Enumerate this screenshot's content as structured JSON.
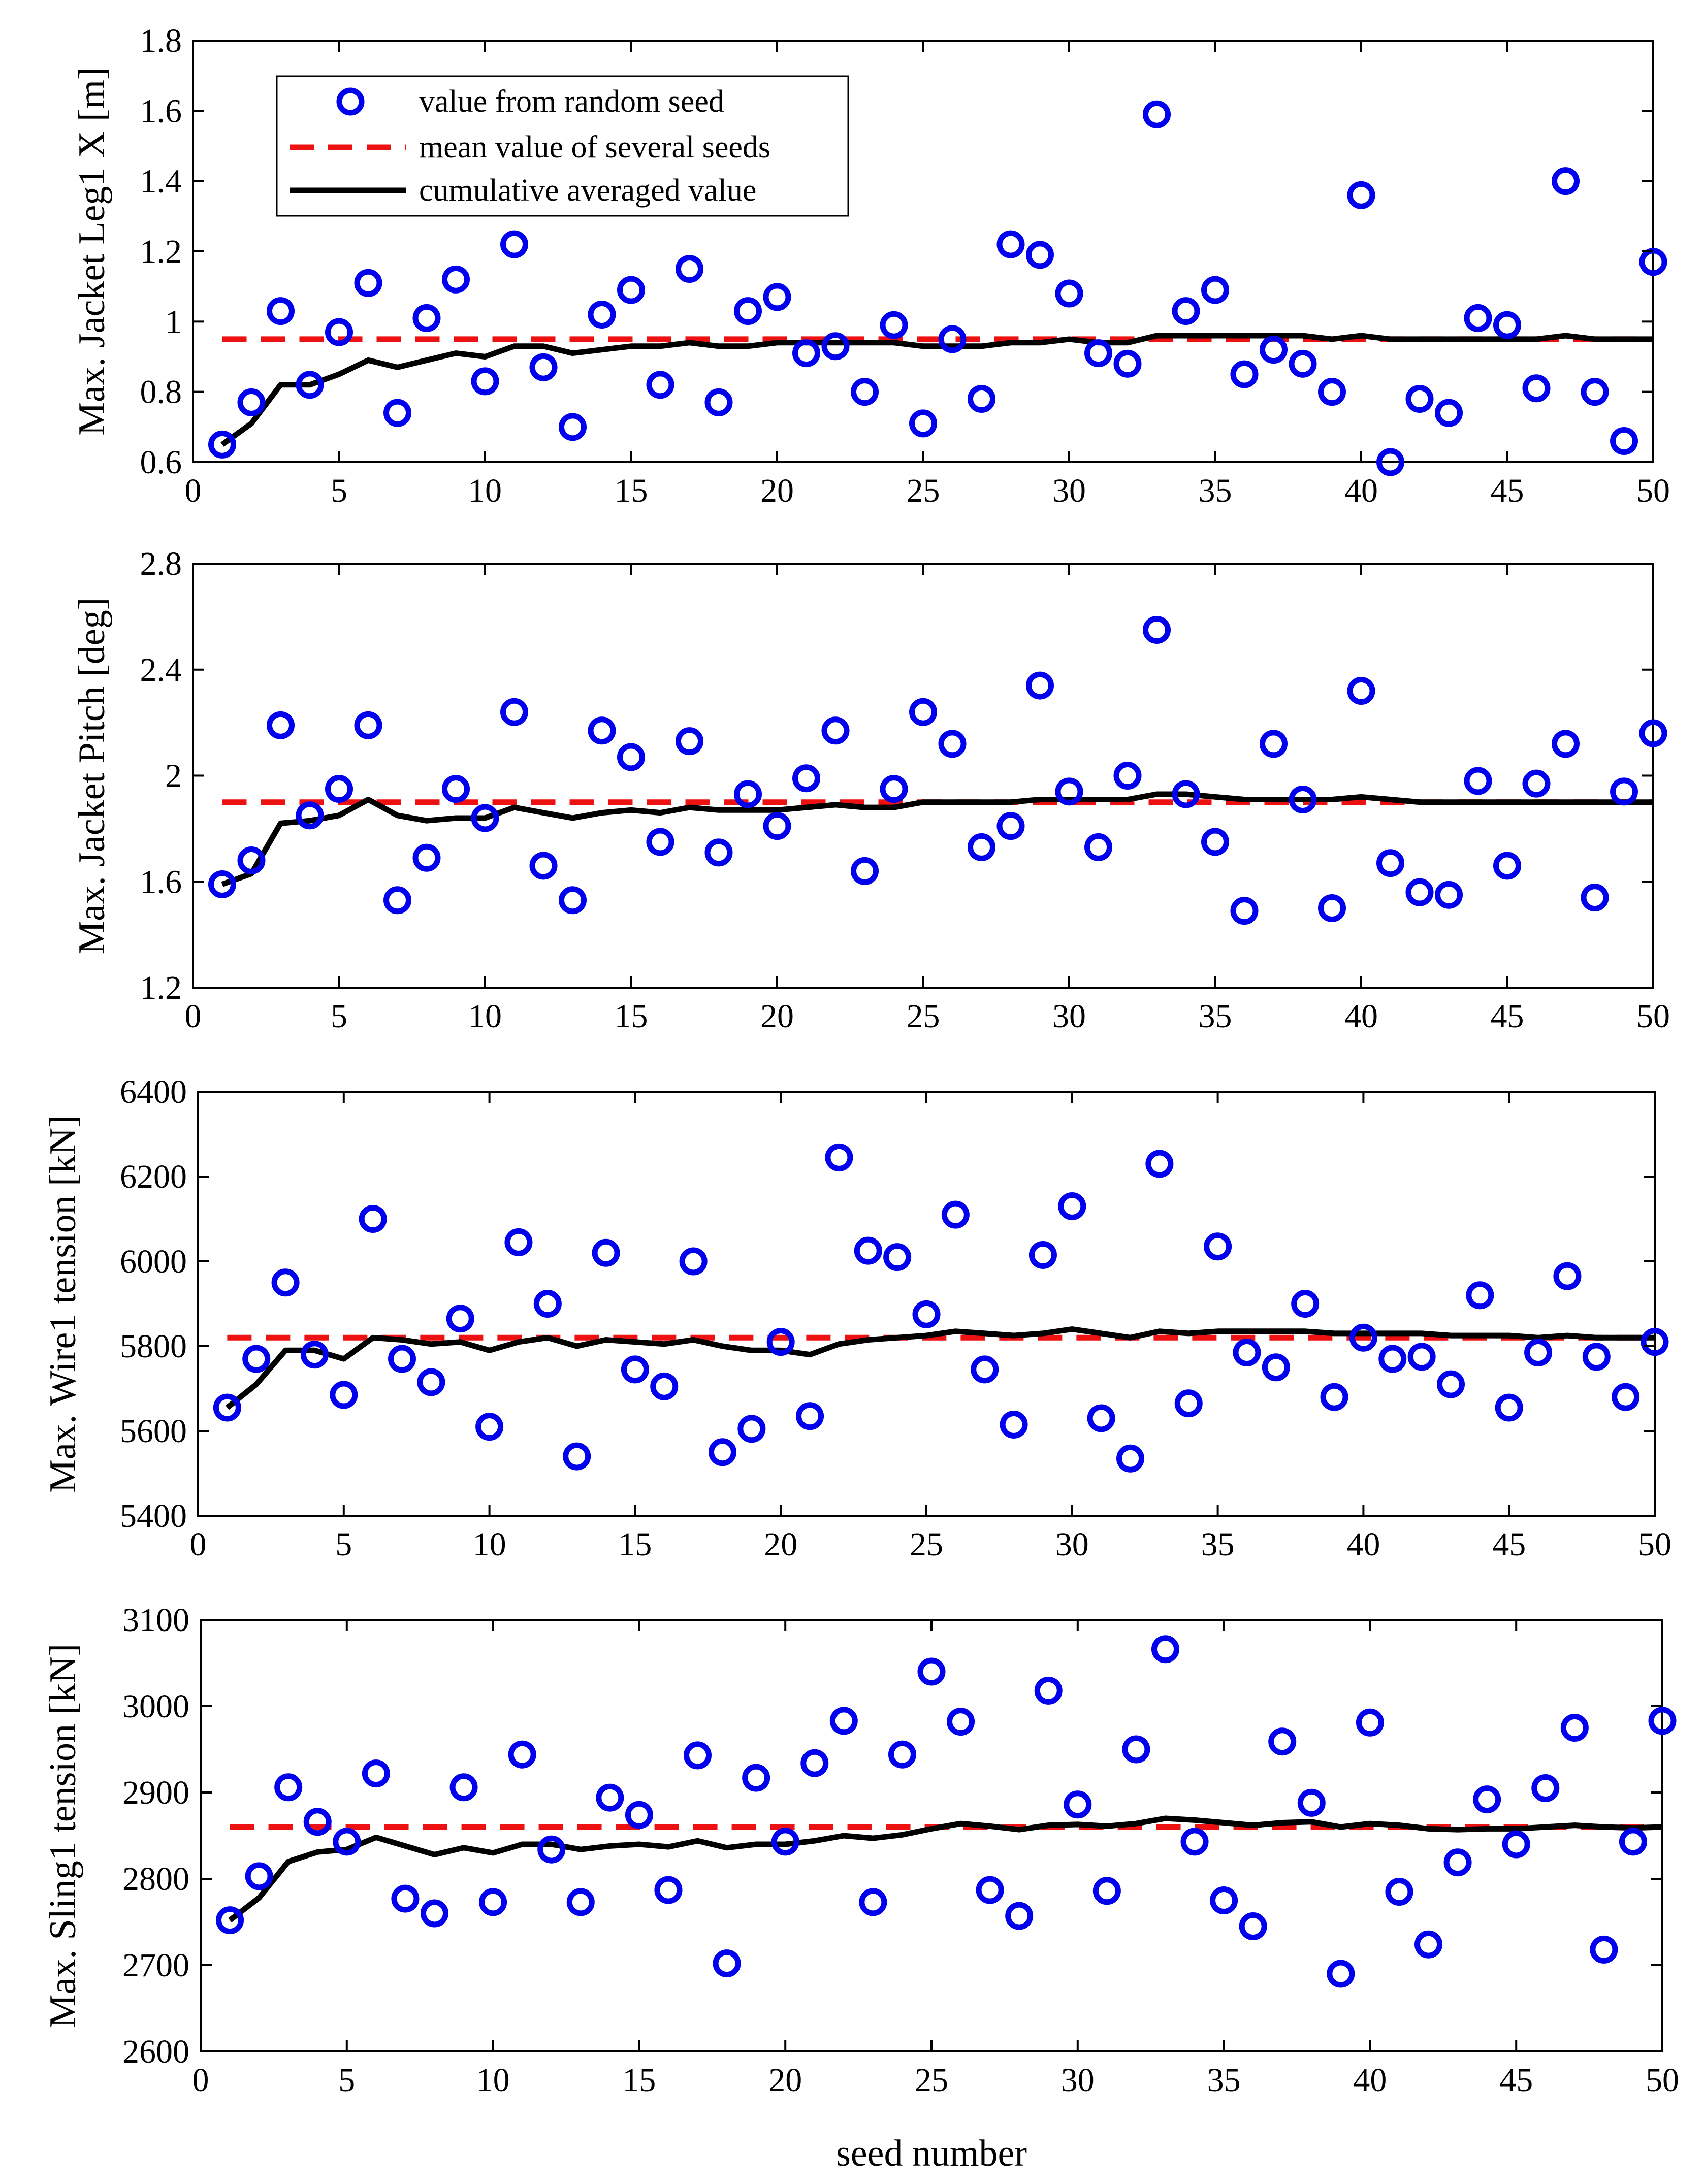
{
  "chart_data": [
    {
      "type": "scatter",
      "id": "leg1x",
      "ylabel": "Max. Jacket Leg1 X [m]",
      "xlabel": "",
      "xlim": [
        0,
        50
      ],
      "ylim": [
        0.6,
        1.8
      ],
      "xticks": [
        0,
        5,
        10,
        15,
        20,
        25,
        30,
        35,
        40,
        45,
        50
      ],
      "yticks": [
        0.6,
        0.8,
        1,
        1.2,
        1.4,
        1.6,
        1.8
      ],
      "ytick_labels": [
        "0.6",
        "0.8",
        "1",
        "1.2",
        "1.4",
        "1.6",
        "1.8"
      ],
      "mean": 0.95,
      "series": [
        {
          "name": "value from random seed",
          "x": [
            1,
            2,
            3,
            4,
            5,
            6,
            7,
            8,
            9,
            10,
            11,
            12,
            13,
            14,
            15,
            16,
            17,
            18,
            19,
            20,
            21,
            22,
            23,
            24,
            25,
            26,
            27,
            28,
            29,
            30,
            31,
            32,
            33,
            34,
            35,
            36,
            37,
            38,
            39,
            40,
            41,
            42,
            43,
            44,
            45,
            46,
            47,
            48,
            49,
            50
          ],
          "values": [
            0.65,
            0.77,
            1.03,
            0.82,
            0.97,
            1.11,
            0.74,
            1.01,
            1.12,
            0.83,
            1.22,
            0.87,
            0.7,
            1.02,
            1.09,
            0.82,
            1.15,
            0.77,
            1.03,
            1.07,
            0.91,
            0.93,
            0.8,
            0.99,
            0.71,
            0.95,
            0.78,
            1.22,
            1.19,
            1.08,
            0.91,
            0.88,
            1.59,
            1.03,
            1.09,
            0.85,
            0.92,
            0.88,
            0.8,
            1.36,
            0.6,
            0.78,
            0.74,
            1.01,
            0.99,
            0.81,
            1.4,
            0.8,
            0.66,
            1.17
          ]
        },
        {
          "name": "cumulative averaged value",
          "values": [
            0.65,
            0.71,
            0.82,
            0.82,
            0.85,
            0.89,
            0.87,
            0.89,
            0.91,
            0.9,
            0.93,
            0.93,
            0.91,
            0.92,
            0.93,
            0.93,
            0.94,
            0.93,
            0.93,
            0.94,
            0.94,
            0.94,
            0.94,
            0.94,
            0.93,
            0.93,
            0.93,
            0.94,
            0.94,
            0.95,
            0.94,
            0.94,
            0.96,
            0.96,
            0.96,
            0.96,
            0.96,
            0.96,
            0.95,
            0.96,
            0.95,
            0.95,
            0.95,
            0.95,
            0.95,
            0.95,
            0.96,
            0.95,
            0.95,
            0.95
          ]
        }
      ]
    },
    {
      "type": "scatter",
      "id": "pitch",
      "ylabel": "Max. Jacket Pitch [deg]",
      "xlabel": "",
      "xlim": [
        0,
        50
      ],
      "ylim": [
        1.2,
        2.8
      ],
      "xticks": [
        0,
        5,
        10,
        15,
        20,
        25,
        30,
        35,
        40,
        45,
        50
      ],
      "yticks": [
        1.2,
        1.6,
        2,
        2.4,
        2.8
      ],
      "ytick_labels": [
        "1.2",
        "1.6",
        "2",
        "2.4",
        "2.8"
      ],
      "mean": 1.9,
      "series": [
        {
          "name": "value from random seed",
          "x": [
            1,
            2,
            3,
            4,
            5,
            6,
            7,
            8,
            9,
            10,
            11,
            12,
            13,
            14,
            15,
            16,
            17,
            18,
            19,
            20,
            21,
            22,
            23,
            24,
            25,
            26,
            27,
            28,
            29,
            30,
            31,
            32,
            33,
            34,
            35,
            36,
            37,
            38,
            39,
            40,
            41,
            42,
            43,
            44,
            45,
            46,
            47,
            48,
            49,
            50
          ],
          "values": [
            1.59,
            1.68,
            2.19,
            1.85,
            1.95,
            2.19,
            1.53,
            1.69,
            1.95,
            1.84,
            2.24,
            1.66,
            1.53,
            2.17,
            2.07,
            1.75,
            2.13,
            1.71,
            1.93,
            1.81,
            1.99,
            2.17,
            1.64,
            1.95,
            2.24,
            2.12,
            1.73,
            1.81,
            2.34,
            1.94,
            1.73,
            2.0,
            2.55,
            1.93,
            1.75,
            1.49,
            2.12,
            1.91,
            1.5,
            2.32,
            1.67,
            1.56,
            1.55,
            1.98,
            1.66,
            1.97,
            2.12,
            1.54,
            1.94,
            2.16
          ]
        },
        {
          "name": "cumulative averaged value",
          "values": [
            1.59,
            1.63,
            1.82,
            1.83,
            1.85,
            1.91,
            1.85,
            1.83,
            1.84,
            1.84,
            1.88,
            1.86,
            1.84,
            1.86,
            1.87,
            1.86,
            1.88,
            1.87,
            1.87,
            1.87,
            1.88,
            1.89,
            1.88,
            1.88,
            1.9,
            1.9,
            1.9,
            1.9,
            1.91,
            1.91,
            1.91,
            1.91,
            1.93,
            1.93,
            1.92,
            1.91,
            1.91,
            1.91,
            1.91,
            1.92,
            1.91,
            1.9,
            1.9,
            1.9,
            1.9,
            1.9,
            1.9,
            1.9,
            1.9,
            1.9
          ]
        }
      ]
    },
    {
      "type": "scatter",
      "id": "wire1",
      "ylabel": "Max. Wire1 tension [kN]",
      "xlabel": "",
      "xlim": [
        0,
        50
      ],
      "ylim": [
        5400,
        6400
      ],
      "xticks": [
        0,
        5,
        10,
        15,
        20,
        25,
        30,
        35,
        40,
        45,
        50
      ],
      "yticks": [
        5400,
        5600,
        5800,
        6000,
        6200,
        6400
      ],
      "ytick_labels": [
        "5400",
        "5600",
        "5800",
        "6000",
        "6200",
        "6400"
      ],
      "mean": 5820,
      "series": [
        {
          "name": "value from random seed",
          "x": [
            1,
            2,
            3,
            4,
            5,
            6,
            7,
            8,
            9,
            10,
            11,
            12,
            13,
            14,
            15,
            16,
            17,
            18,
            19,
            20,
            21,
            22,
            23,
            24,
            25,
            26,
            27,
            28,
            29,
            30,
            31,
            32,
            33,
            34,
            35,
            36,
            37,
            38,
            39,
            40,
            41,
            42,
            43,
            44,
            45,
            46,
            47,
            48,
            49,
            50
          ],
          "values": [
            5655,
            5770,
            5950,
            5780,
            5685,
            6100,
            5770,
            5715,
            5865,
            5610,
            6045,
            5900,
            5540,
            6020,
            5745,
            5705,
            6000,
            5550,
            5605,
            5810,
            5635,
            6245,
            6025,
            6010,
            5875,
            6110,
            5745,
            5615,
            6015,
            6130,
            5630,
            5535,
            6230,
            5665,
            6035,
            5785,
            5750,
            5900,
            5680,
            5820,
            5770,
            5775,
            5710,
            5920,
            5655,
            5785,
            5965,
            5775,
            5680,
            5810
          ]
        },
        {
          "name": "cumulative averaged value",
          "values": [
            5655,
            5710,
            5790,
            5790,
            5770,
            5820,
            5815,
            5805,
            5810,
            5790,
            5810,
            5820,
            5800,
            5815,
            5810,
            5805,
            5815,
            5800,
            5790,
            5790,
            5780,
            5805,
            5815,
            5820,
            5825,
            5835,
            5830,
            5825,
            5830,
            5840,
            5830,
            5820,
            5835,
            5830,
            5835,
            5835,
            5835,
            5835,
            5830,
            5830,
            5830,
            5830,
            5825,
            5825,
            5825,
            5820,
            5825,
            5820,
            5820,
            5820
          ]
        }
      ]
    },
    {
      "type": "scatter",
      "id": "sling1",
      "ylabel": "Max. Sling1 tension [kN]",
      "xlabel": "seed number",
      "xlim": [
        0,
        50
      ],
      "ylim": [
        2600,
        3100
      ],
      "xticks": [
        0,
        5,
        10,
        15,
        20,
        25,
        30,
        35,
        40,
        45,
        50
      ],
      "yticks": [
        2600,
        2700,
        2800,
        2900,
        3000,
        3100
      ],
      "ytick_labels": [
        "2600",
        "2700",
        "2800",
        "2900",
        "3000",
        "3100"
      ],
      "mean": 2860,
      "series": [
        {
          "name": "value from random seed",
          "x": [
            1,
            2,
            3,
            4,
            5,
            6,
            7,
            8,
            9,
            10,
            11,
            12,
            13,
            14,
            15,
            16,
            17,
            18,
            19,
            20,
            21,
            22,
            23,
            24,
            25,
            26,
            27,
            28,
            29,
            30,
            31,
            32,
            33,
            34,
            35,
            36,
            37,
            38,
            39,
            40,
            41,
            42,
            43,
            44,
            45,
            46,
            47,
            48,
            49,
            50
          ],
          "values": [
            2752,
            2803,
            2906,
            2866,
            2843,
            2922,
            2777,
            2760,
            2906,
            2773,
            2944,
            2834,
            2773,
            2894,
            2874,
            2787,
            2943,
            2702,
            2917,
            2843,
            2934,
            2983,
            2773,
            2944,
            3040,
            2982,
            2787,
            2757,
            3018,
            2886,
            2786,
            2950,
            3066,
            2843,
            2775,
            2745,
            2959,
            2888,
            2690,
            2981,
            2785,
            2724,
            2819,
            2892,
            2840,
            2905,
            2975,
            2718,
            2843,
            2983
          ]
        },
        {
          "name": "cumulative averaged value",
          "values": [
            2752,
            2778,
            2820,
            2831,
            2834,
            2848,
            2838,
            2828,
            2836,
            2830,
            2840,
            2840,
            2834,
            2838,
            2840,
            2837,
            2844,
            2836,
            2840,
            2840,
            2844,
            2850,
            2847,
            2851,
            2858,
            2864,
            2861,
            2857,
            2862,
            2863,
            2861,
            2864,
            2870,
            2868,
            2865,
            2862,
            2865,
            2866,
            2860,
            2864,
            2862,
            2858,
            2857,
            2858,
            2858,
            2860,
            2862,
            2860,
            2859,
            2860
          ]
        }
      ]
    }
  ],
  "legend": {
    "position": "top-left",
    "items": [
      {
        "label": "value from random seed",
        "style": "circle",
        "color": "#0000EE"
      },
      {
        "label": "mean value of several seeds",
        "style": "dashed",
        "color": "#EE1111"
      },
      {
        "label": "cumulative averaged value",
        "style": "solid",
        "color": "#000000"
      }
    ]
  },
  "colors": {
    "points": "#0000EE",
    "mean": "#EE1111",
    "cumulative": "#000000",
    "axes": "#000000"
  }
}
